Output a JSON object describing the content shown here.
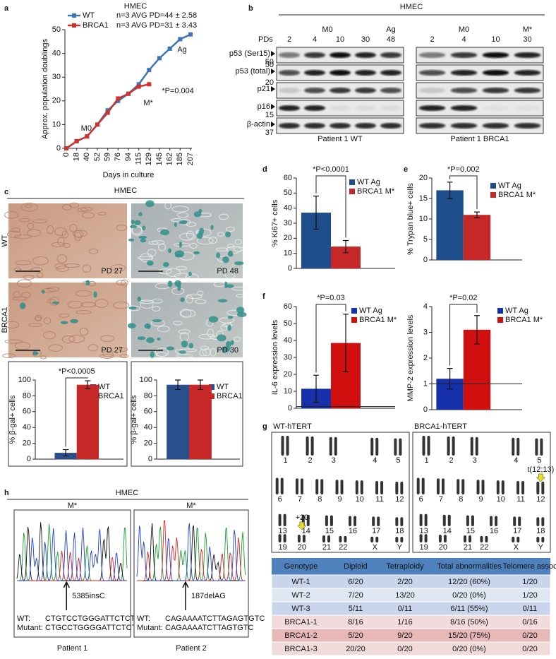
{
  "panels": [
    "a",
    "b",
    "c",
    "d",
    "e",
    "f",
    "g",
    "h"
  ],
  "chart_data": [
    {
      "type": "line",
      "title": "HMEC",
      "x_label": "Days in culture",
      "y_label": "Approx. population doublings",
      "categories": [
        "0",
        "18",
        "40",
        "52",
        "59",
        "76",
        "94",
        "115",
        "129",
        "145",
        "162",
        "185",
        "207"
      ],
      "series": [
        {
          "name": "WT",
          "color": "#3d74b8",
          "note": "n=3  AVG PD=44 ± 2.58",
          "values": [
            0,
            3,
            5,
            10,
            16,
            20,
            23,
            27,
            33,
            38,
            42,
            46,
            48
          ]
        },
        {
          "name": "BRCA1",
          "color": "#d0312d",
          "note": "n=3  AVG PD=31 ± 3.43",
          "values": [
            0,
            3,
            5,
            10,
            15,
            21,
            23,
            26,
            27,
            null,
            null,
            null,
            null
          ]
        }
      ],
      "ylim": [
        0,
        50
      ],
      "yticks": [
        0,
        10,
        20,
        30,
        40,
        50
      ],
      "annotations": [
        "M0",
        "Ag",
        "M*",
        "*P=0.004"
      ]
    },
    {
      "type": "bar",
      "y_label": "% β-gal+ cells",
      "annotation": "*P<0.0005",
      "ylim": [
        0,
        100
      ],
      "yticks": [
        0,
        20,
        40,
        60,
        80,
        100
      ],
      "series": [
        {
          "name": "WT",
          "color": "#2b4f8a",
          "values": [
            8
          ],
          "errors": [
            4
          ]
        },
        {
          "name": "BRCA1",
          "color": "#c62828",
          "values": [
            94
          ],
          "errors": [
            5
          ]
        }
      ]
    },
    {
      "type": "bar",
      "y_label": "% β-gal+ cells",
      "ylim": [
        0,
        100
      ],
      "yticks": [
        0,
        20,
        40,
        60,
        80,
        100
      ],
      "series": [
        {
          "name": "WT",
          "color": "#2b4f8a",
          "values": [
            94
          ],
          "errors": [
            6
          ]
        },
        {
          "name": "BRCA1",
          "color": "#c62828",
          "values": [
            94
          ],
          "errors": [
            6
          ]
        }
      ]
    },
    {
      "type": "bar",
      "y_label": "% Ki67+ cells",
      "annotation": "*P<0.0001",
      "ylim": [
        0,
        60
      ],
      "yticks": [
        0,
        10,
        20,
        30,
        40,
        50,
        60
      ],
      "series": [
        {
          "name": "WT Ag",
          "color": "#1f4e8c",
          "values": [
            37
          ],
          "errors": [
            11
          ]
        },
        {
          "name": "BRCA1 M*",
          "color": "#c62828",
          "values": [
            14.5
          ],
          "errors": [
            4
          ]
        }
      ]
    },
    {
      "type": "bar",
      "y_label": "% Trypan blue+ cells",
      "annotation": "*P=0.002",
      "ylim": [
        0,
        20
      ],
      "yticks": [
        0,
        5,
        10,
        15,
        20
      ],
      "series": [
        {
          "name": "WT Ag",
          "color": "#1f4e8c",
          "values": [
            17
          ],
          "errors": [
            2
          ]
        },
        {
          "name": "BRCA1 M*",
          "color": "#c62828",
          "values": [
            11
          ],
          "errors": [
            0.7
          ]
        }
      ]
    },
    {
      "type": "bar",
      "y_label": "IL-6 expression levels",
      "annotation": "*P=0.03",
      "ylim": [
        0,
        60
      ],
      "yticks": [
        0,
        10,
        20,
        30,
        40,
        50,
        60
      ],
      "hline": 1,
      "series": [
        {
          "name": "WT Ag",
          "color": "#1530a8",
          "values": [
            11.5
          ],
          "errors": [
            8
          ]
        },
        {
          "name": "BRCA1 M*",
          "color": "#d10f0f",
          "values": [
            38.5
          ],
          "errors": [
            17
          ]
        }
      ]
    },
    {
      "type": "bar",
      "y_label": "MMP-2 expression levels",
      "annotation": "*P=0.02",
      "ylim": [
        0,
        4
      ],
      "yticks": [
        0,
        1,
        2,
        3,
        4
      ],
      "hline": 1,
      "series": [
        {
          "name": "WT Ag",
          "color": "#1530a8",
          "values": [
            1.2
          ],
          "errors": [
            0.4
          ]
        },
        {
          "name": "BRCA1 M*",
          "color": "#d10f0f",
          "values": [
            3.1
          ],
          "errors": [
            0.55
          ]
        }
      ]
    }
  ],
  "blot": {
    "title": "HMEC",
    "pd_label": "PDs",
    "groups": [
      {
        "stages": [
          "M0",
          "Ag"
        ],
        "pds": [
          "2",
          "4",
          "10",
          "30",
          "48"
        ],
        "footer": "Patient 1 WT"
      },
      {
        "stages": [
          "M0",
          "M*"
        ],
        "pds": [
          "2",
          "4",
          "10",
          "30"
        ],
        "footer": "Patient 1 BRCA1"
      }
    ],
    "rows": [
      "p53 (Ser15)",
      "p53 (total)",
      "p21",
      "p16",
      "β-actin"
    ],
    "markers": [
      "50",
      "50",
      "20",
      "15",
      "37"
    ]
  },
  "micrographs": {
    "title": "HMEC",
    "rows": [
      "WT",
      "BRCA1"
    ],
    "labels": [
      "PD 27",
      "PD 48",
      "PD 27",
      "PD 30"
    ]
  },
  "karyotype": {
    "panels": [
      {
        "title": "WT-hTERT",
        "annotation": "+20"
      },
      {
        "title": "BRCA1-hTERT",
        "annotation": "t(12;13)"
      }
    ],
    "chromosomes": [
      "1",
      "2",
      "3",
      "4",
      "5",
      "6",
      "7",
      "8",
      "9",
      "10",
      "11",
      "12",
      "13",
      "14",
      "15",
      "16",
      "17",
      "18",
      "19",
      "20",
      "21",
      "22",
      "X",
      "Y"
    ]
  },
  "table": {
    "header": [
      "Genotype",
      "Diploid",
      "Tetraploidy",
      "Total abnormalities",
      "Telomere assoc"
    ],
    "rows": [
      [
        "WT-1",
        "6/20",
        "2/20",
        "12/20  (60%)",
        "1/20"
      ],
      [
        "WT-2",
        "7/20",
        "13/20",
        "0/20    (0%)",
        "1/20"
      ],
      [
        "WT-3",
        "5/11",
        "0/11",
        "6/11  (55%)",
        "0/11"
      ],
      [
        "BRCA1-1",
        "8/16",
        "1/16",
        "8/16  (50%)",
        "0/16"
      ],
      [
        "BRCA1-2",
        "5/20",
        "9/20",
        "15/20  (75%)",
        "0/20"
      ],
      [
        "BRCA1-3",
        "20/20",
        "0/20",
        "0/20    (0%)",
        "0/20"
      ]
    ]
  },
  "sequencing": {
    "title": "HMEC",
    "panels": [
      {
        "stage": "M*",
        "mutation": "5385insC",
        "wt_label": "WT:",
        "wt_seq": "CTGTCCTGGGATTCTCTT",
        "mut_label": "Mutant:",
        "mut_seq": "CTGCCTGGGGATTCTCTT",
        "patient": "Patient 1"
      },
      {
        "stage": "M*",
        "mutation": "187delAG",
        "wt_label": "WT:",
        "wt_seq": "CAGAAAATCTTAGAGTGTC",
        "mut_label": "Mutant:",
        "mut_seq": "CAGAAAATCTTAGTGTC",
        "patient": "Patient 2"
      }
    ]
  }
}
